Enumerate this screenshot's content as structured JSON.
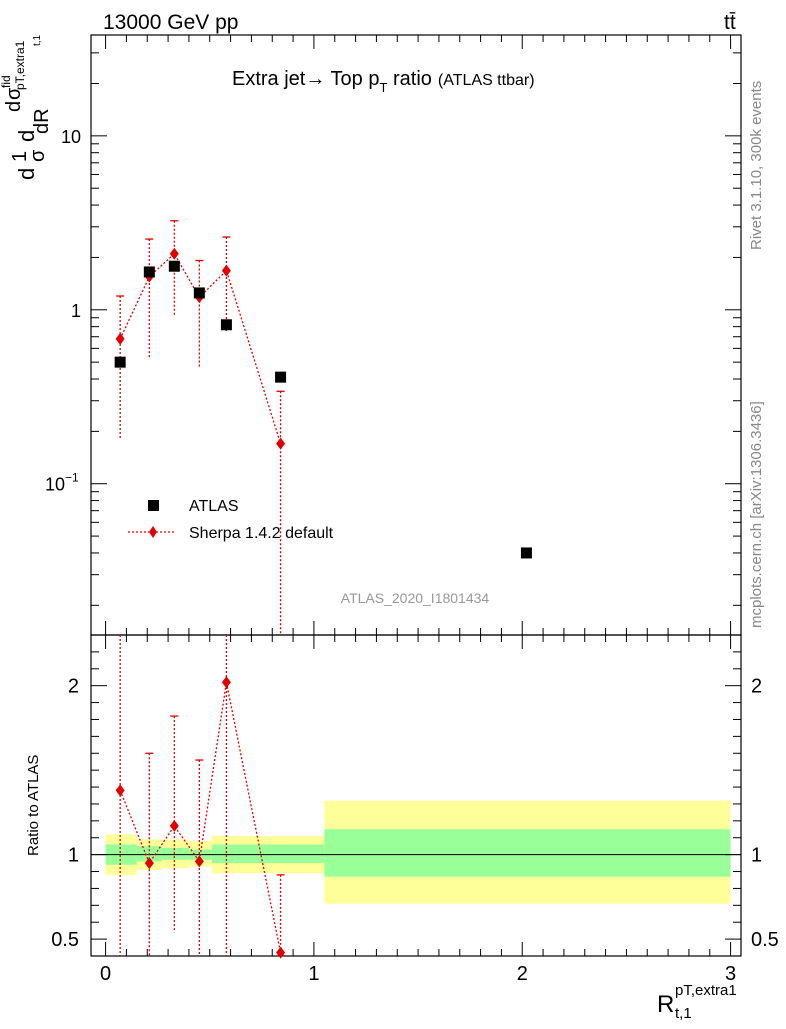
{
  "header": {
    "left": "13000 GeV pp",
    "right": "tt̄"
  },
  "title_main": "Extra jet→ Top p",
  "title_sub": "T",
  "title_after": " ratio",
  "title_tag": "(ATLAS ttbar)",
  "side_top": "Rivet 3.1.10,  300k events",
  "side_bottom": "mcplots.cern.ch [arXiv:1306.3436]",
  "analysis_id": "ATLAS_2020_I1801434",
  "ratio_ylabel": "Ratio to ATLAS",
  "ylabel_parts": {
    "d": "d",
    "one": "1",
    "sigma": "σ",
    "d2": "d",
    "d3": "d",
    "sigma_fid": "σ",
    "fid": "fid",
    "pt_extra1": "pT,extra1",
    "sub_t1": "t,1",
    "dR": "dR"
  },
  "xlabel_parts": {
    "R": "R",
    "sup": "pT,extra1",
    "sub": "t,1"
  },
  "chart_data": {
    "type": "scatter",
    "x_range": [
      -0.07,
      3.05
    ],
    "main": {
      "y_scale": "log",
      "y_range": [
        0.0135,
        38
      ],
      "y_ticks": [
        {
          "value": 0.1,
          "label": "10",
          "exp": "−1"
        },
        {
          "value": 1,
          "label": "1"
        },
        {
          "value": 10,
          "label": "10"
        }
      ]
    },
    "ratio": {
      "y_range": [
        0.4,
        2.3
      ],
      "y_ticks": [
        {
          "value": 0.5,
          "label": "0.5"
        },
        {
          "value": 1,
          "label": "1"
        },
        {
          "value": 2,
          "label": "2"
        }
      ]
    },
    "x_ticks": [
      {
        "value": 0,
        "label": "0"
      },
      {
        "value": 1,
        "label": "1"
      },
      {
        "value": 2,
        "label": "2"
      },
      {
        "value": 3,
        "label": "3"
      }
    ],
    "legend": {
      "position": "middle-left",
      "entries": [
        "ATLAS",
        "Sherpa 1.4.2 default"
      ]
    },
    "series": [
      {
        "name": "ATLAS",
        "marker": "square",
        "color": "#000000",
        "x": [
          0.07,
          0.21,
          0.33,
          0.45,
          0.58,
          0.84,
          2.02
        ],
        "y": [
          0.5,
          1.65,
          1.78,
          1.25,
          0.82,
          0.41,
          0.04
        ]
      },
      {
        "name": "Sherpa 1.4.2 default",
        "marker": "diamond",
        "color": "#e00000",
        "x": [
          0.07,
          0.21,
          0.33,
          0.45,
          0.58,
          0.84
        ],
        "y": [
          0.68,
          1.55,
          2.1,
          1.18,
          1.68,
          0.17
        ],
        "y_low": [
          0.18,
          0.52,
          0.93,
          0.47,
          0.75,
          0.0135
        ],
        "y_high": [
          1.2,
          2.55,
          3.25,
          1.92,
          2.62,
          0.34
        ]
      }
    ],
    "ratio_series": {
      "x": [
        0.07,
        0.21,
        0.33,
        0.45,
        0.58,
        0.84
      ],
      "y": [
        1.38,
        0.95,
        1.17,
        0.96,
        2.02,
        0.42
      ],
      "y_low": [
        0.4,
        0.4,
        0.54,
        0.4,
        0.4,
        0.4
      ],
      "y_high": [
        2.3,
        1.6,
        1.82,
        1.56,
        2.3,
        0.88
      ]
    },
    "bands": [
      {
        "x0": 0.0,
        "x1": 0.15,
        "y_low": 0.88,
        "y_high": 1.12,
        "inner_low": 0.94,
        "inner_high": 1.06
      },
      {
        "x0": 0.15,
        "x1": 0.27,
        "y_low": 0.91,
        "y_high": 1.09,
        "inner_low": 0.96,
        "inner_high": 1.05
      },
      {
        "x0": 0.27,
        "x1": 0.4,
        "y_low": 0.92,
        "y_high": 1.09,
        "inner_low": 0.97,
        "inner_high": 1.04
      },
      {
        "x0": 0.4,
        "x1": 0.51,
        "y_low": 0.93,
        "y_high": 1.08,
        "inner_low": 0.97,
        "inner_high": 1.03
      },
      {
        "x0": 0.51,
        "x1": 1.05,
        "y_low": 0.89,
        "y_high": 1.11,
        "inner_low": 0.95,
        "inner_high": 1.06
      },
      {
        "x0": 1.05,
        "x1": 3.0,
        "y_low": 0.71,
        "y_high": 1.32,
        "inner_low": 0.87,
        "inner_high": 1.15
      }
    ],
    "band_colors": {
      "outer": "#ffff99",
      "inner": "#99ff99"
    }
  }
}
